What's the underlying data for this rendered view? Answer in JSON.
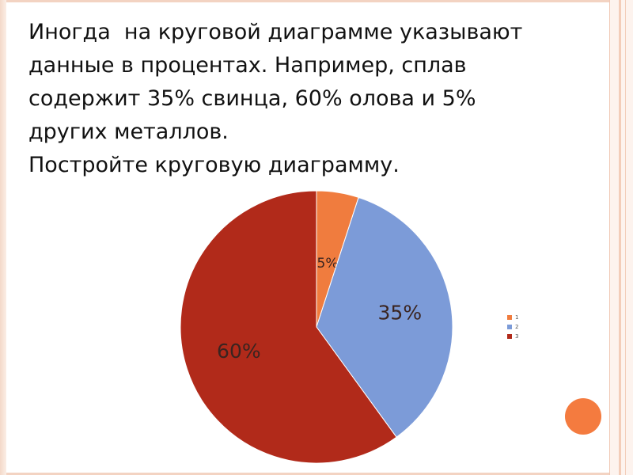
{
  "slide": {
    "text_lines": [
      "Иногда  на круговой диаграмме указывают",
      "данные в процентах. Например, сплав",
      "содержит 35% свинца, 60% олова и 5%",
      "других металлов.",
      "Постройте круговую диаграмму."
    ]
  },
  "chart_data": {
    "type": "pie",
    "categories": [
      "1",
      "2",
      "3"
    ],
    "values": [
      5,
      35,
      60
    ],
    "data_labels": [
      "5%",
      "35%",
      "60%"
    ],
    "colors": [
      "#f07c3e",
      "#7c9bd8",
      "#b12a1a"
    ],
    "title": "",
    "legend": "right",
    "start_angle_deg": 0,
    "direction": "clockwise"
  }
}
